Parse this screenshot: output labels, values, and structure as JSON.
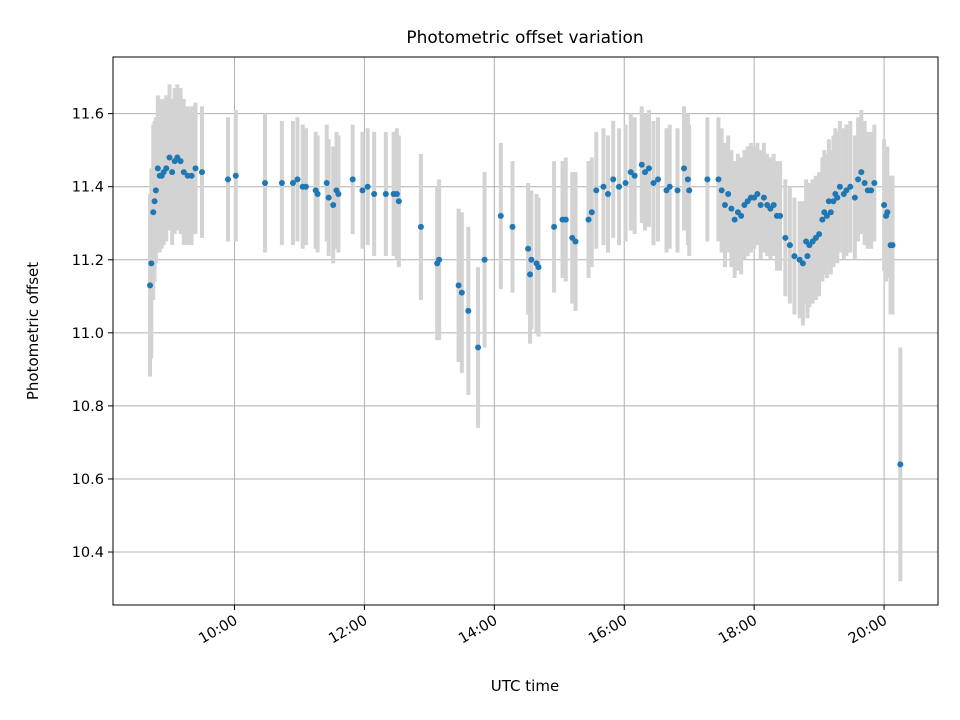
{
  "chart_data": {
    "type": "scatter",
    "title": "Photometric offset variation",
    "xlabel": "UTC time",
    "ylabel": "Photometric offset",
    "x_unit": "hours UTC",
    "xlim": [
      8.13,
      20.83
    ],
    "ylim": [
      10.255,
      11.755
    ],
    "x_ticks": [
      {
        "value": 10,
        "label": "10:00"
      },
      {
        "value": 12,
        "label": "12:00"
      },
      {
        "value": 14,
        "label": "14:00"
      },
      {
        "value": 16,
        "label": "16:00"
      },
      {
        "value": 18,
        "label": "18:00"
      },
      {
        "value": 20,
        "label": "20:00"
      }
    ],
    "y_ticks": [
      {
        "value": 10.4,
        "label": "10.4"
      },
      {
        "value": 10.6,
        "label": "10.6"
      },
      {
        "value": 10.8,
        "label": "10.8"
      },
      {
        "value": 11.0,
        "label": "11.0"
      },
      {
        "value": 11.2,
        "label": "11.2"
      },
      {
        "value": 11.4,
        "label": "11.4"
      },
      {
        "value": 11.6,
        "label": "11.6"
      }
    ],
    "grid": true,
    "colors": {
      "marker": "#1f77b4",
      "errorbar": "#d3d3d3",
      "grid": "#b0b0b0"
    },
    "series": [
      {
        "points": [
          [
            8.7,
            11.13,
            0.25
          ],
          [
            8.72,
            11.19,
            0.26
          ],
          [
            8.75,
            11.33,
            0.24
          ],
          [
            8.77,
            11.36,
            0.22
          ],
          [
            8.79,
            11.39,
            0.2
          ],
          [
            8.82,
            11.45,
            0.2
          ],
          [
            8.85,
            11.43,
            0.21
          ],
          [
            8.88,
            11.43,
            0.2
          ],
          [
            8.91,
            11.44,
            0.2
          ],
          [
            8.95,
            11.45,
            0.2
          ],
          [
            9.0,
            11.48,
            0.2
          ],
          [
            9.04,
            11.44,
            0.2
          ],
          [
            9.08,
            11.47,
            0.2
          ],
          [
            9.12,
            11.48,
            0.2
          ],
          [
            9.17,
            11.47,
            0.2
          ],
          [
            9.22,
            11.44,
            0.2
          ],
          [
            9.28,
            11.43,
            0.19
          ],
          [
            9.34,
            11.43,
            0.19
          ],
          [
            9.4,
            11.45,
            0.18
          ],
          [
            9.5,
            11.44,
            0.18
          ],
          [
            9.9,
            11.42,
            0.17
          ],
          [
            10.02,
            11.43,
            0.18
          ],
          [
            10.47,
            11.41,
            0.19
          ],
          [
            10.73,
            11.41,
            0.17
          ],
          [
            10.9,
            11.41,
            0.17
          ],
          [
            10.97,
            11.42,
            0.17
          ],
          [
            11.05,
            11.4,
            0.17
          ],
          [
            11.1,
            11.4,
            0.16
          ],
          [
            11.25,
            11.39,
            0.16
          ],
          [
            11.28,
            11.38,
            0.16
          ],
          [
            11.42,
            11.41,
            0.16
          ],
          [
            11.45,
            11.37,
            0.16
          ],
          [
            11.52,
            11.35,
            0.16
          ],
          [
            11.57,
            11.39,
            0.16
          ],
          [
            11.6,
            11.38,
            0.16
          ],
          [
            11.82,
            11.42,
            0.15
          ],
          [
            11.97,
            11.39,
            0.16
          ],
          [
            12.05,
            11.4,
            0.16
          ],
          [
            12.15,
            11.38,
            0.17
          ],
          [
            12.33,
            11.38,
            0.17
          ],
          [
            12.45,
            11.38,
            0.17
          ],
          [
            12.5,
            11.38,
            0.18
          ],
          [
            12.53,
            11.36,
            0.18
          ],
          [
            12.87,
            11.29,
            0.2
          ],
          [
            13.12,
            11.19,
            0.21
          ],
          [
            13.15,
            11.2,
            0.22
          ],
          [
            13.45,
            11.13,
            0.21
          ],
          [
            13.5,
            11.11,
            0.22
          ],
          [
            13.6,
            11.06,
            0.23
          ],
          [
            13.75,
            10.96,
            0.22
          ],
          [
            13.85,
            11.2,
            0.24
          ],
          [
            14.1,
            11.32,
            0.2
          ],
          [
            14.28,
            11.29,
            0.18
          ],
          [
            14.52,
            11.23,
            0.18
          ],
          [
            14.55,
            11.16,
            0.19
          ],
          [
            14.57,
            11.2,
            0.19
          ],
          [
            14.65,
            11.19,
            0.19
          ],
          [
            14.68,
            11.18,
            0.19
          ],
          [
            14.92,
            11.29,
            0.18
          ],
          [
            15.05,
            11.31,
            0.16
          ],
          [
            15.1,
            11.31,
            0.17
          ],
          [
            15.2,
            11.26,
            0.18
          ],
          [
            15.25,
            11.25,
            0.19
          ],
          [
            15.45,
            11.31,
            0.16
          ],
          [
            15.5,
            11.33,
            0.15
          ],
          [
            15.57,
            11.39,
            0.16
          ],
          [
            15.68,
            11.4,
            0.16
          ],
          [
            15.75,
            11.38,
            0.16
          ],
          [
            15.83,
            11.42,
            0.16
          ],
          [
            15.92,
            11.4,
            0.16
          ],
          [
            16.02,
            11.41,
            0.16
          ],
          [
            16.1,
            11.44,
            0.16
          ],
          [
            16.16,
            11.43,
            0.16
          ],
          [
            16.27,
            11.46,
            0.16
          ],
          [
            16.32,
            11.44,
            0.16
          ],
          [
            16.38,
            11.45,
            0.16
          ],
          [
            16.45,
            11.41,
            0.17
          ],
          [
            16.52,
            11.42,
            0.17
          ],
          [
            16.65,
            11.39,
            0.17
          ],
          [
            16.7,
            11.4,
            0.17
          ],
          [
            16.82,
            11.39,
            0.17
          ],
          [
            16.92,
            11.45,
            0.17
          ],
          [
            16.98,
            11.42,
            0.18
          ],
          [
            17.0,
            11.39,
            0.18
          ],
          [
            17.28,
            11.42,
            0.17
          ],
          [
            17.45,
            11.42,
            0.17
          ],
          [
            17.5,
            11.39,
            0.17
          ],
          [
            17.55,
            11.35,
            0.17
          ],
          [
            17.6,
            11.38,
            0.16
          ],
          [
            17.65,
            11.34,
            0.16
          ],
          [
            17.7,
            11.31,
            0.16
          ],
          [
            17.75,
            11.33,
            0.16
          ],
          [
            17.8,
            11.32,
            0.16
          ],
          [
            17.85,
            11.35,
            0.15
          ],
          [
            17.9,
            11.36,
            0.15
          ],
          [
            17.95,
            11.37,
            0.15
          ],
          [
            18.0,
            11.37,
            0.14
          ],
          [
            18.05,
            11.38,
            0.14
          ],
          [
            18.1,
            11.35,
            0.15
          ],
          [
            18.15,
            11.37,
            0.15
          ],
          [
            18.2,
            11.35,
            0.14
          ],
          [
            18.25,
            11.34,
            0.14
          ],
          [
            18.3,
            11.35,
            0.14
          ],
          [
            18.35,
            11.32,
            0.15
          ],
          [
            18.4,
            11.32,
            0.15
          ],
          [
            18.48,
            11.26,
            0.16
          ],
          [
            18.55,
            11.24,
            0.16
          ],
          [
            18.62,
            11.21,
            0.16
          ],
          [
            18.7,
            11.2,
            0.16
          ],
          [
            18.75,
            11.19,
            0.17
          ],
          [
            18.8,
            11.25,
            0.17
          ],
          [
            18.82,
            11.21,
            0.17
          ],
          [
            18.85,
            11.24,
            0.17
          ],
          [
            18.9,
            11.25,
            0.17
          ],
          [
            18.95,
            11.26,
            0.17
          ],
          [
            19.0,
            11.27,
            0.17
          ],
          [
            19.05,
            11.31,
            0.17
          ],
          [
            19.08,
            11.33,
            0.17
          ],
          [
            19.12,
            11.32,
            0.17
          ],
          [
            19.15,
            11.36,
            0.17
          ],
          [
            19.18,
            11.33,
            0.17
          ],
          [
            19.22,
            11.36,
            0.18
          ],
          [
            19.25,
            11.38,
            0.18
          ],
          [
            19.28,
            11.37,
            0.18
          ],
          [
            19.32,
            11.4,
            0.18
          ],
          [
            19.38,
            11.38,
            0.18
          ],
          [
            19.42,
            11.39,
            0.18
          ],
          [
            19.48,
            11.4,
            0.18
          ],
          [
            19.55,
            11.37,
            0.17
          ],
          [
            19.6,
            11.42,
            0.17
          ],
          [
            19.65,
            11.44,
            0.17
          ],
          [
            19.7,
            11.41,
            0.17
          ],
          [
            19.75,
            11.39,
            0.16
          ],
          [
            19.8,
            11.39,
            0.16
          ],
          [
            19.85,
            11.41,
            0.16
          ],
          [
            20.0,
            11.35,
            0.18
          ],
          [
            20.03,
            11.32,
            0.18
          ],
          [
            20.05,
            11.33,
            0.18
          ],
          [
            20.1,
            11.24,
            0.19
          ],
          [
            20.13,
            11.24,
            0.19
          ],
          [
            20.25,
            10.64,
            0.32
          ]
        ]
      }
    ]
  }
}
